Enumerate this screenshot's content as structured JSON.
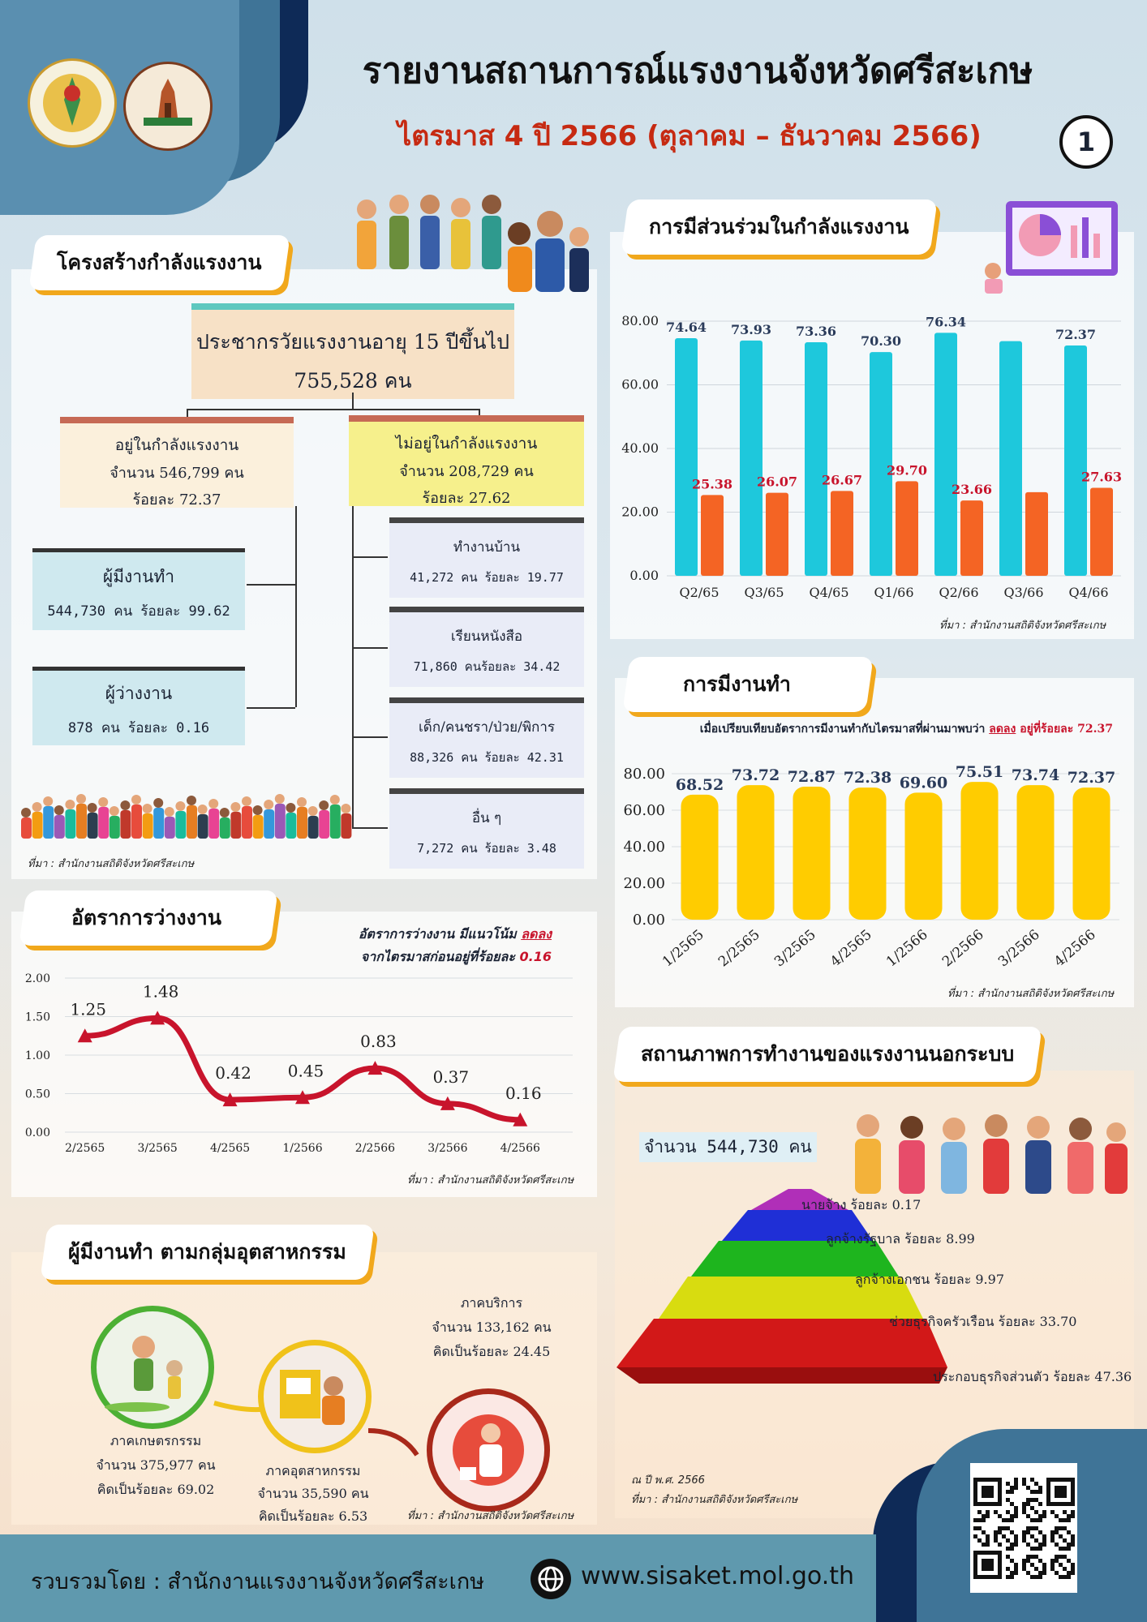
{
  "header": {
    "title": "รายงานสถานการณ์แรงงานจังหวัดศรีสะเกษ",
    "subtitle": "ไตรมาส 4 ปี 2566 (ตุลาคม – ธันวาคม 2566)",
    "page_number": "1"
  },
  "structure": {
    "tab": "โครงสร้างกำลังแรงงาน",
    "top": {
      "label": "ประชากรวัยแรงงานอายุ 15 ปีขึ้นไป",
      "value": "755,528 คน"
    },
    "in_labor": {
      "l1": "อยู่ในกำลังแรงงาน",
      "l2": "จำนวน 546,799 คน",
      "l3": "ร้อยละ 72.37"
    },
    "out_labor": {
      "l1": "ไม่อยู่ในกำลังแรงงาน",
      "l2": "จำนวน 208,729 คน",
      "l3": "ร้อยละ 27.62"
    },
    "employed": {
      "l1": "ผู้มีงานทำ",
      "l2": "544,730 คน ร้อยละ 99.62"
    },
    "unemployed": {
      "l1": "ผู้ว่างงาน",
      "l2": "878 คน ร้อยละ 0.16"
    },
    "out_items": [
      {
        "label": "ทำงานบ้าน",
        "value": "41,272 คน ร้อยละ 19.77"
      },
      {
        "label": "เรียนหนังสือ",
        "value": "71,860 คนร้อยละ 34.42"
      },
      {
        "label": "เด็ก/คนชรา/ป่วย/พิการ",
        "value": "88,326 คน ร้อยละ 42.31"
      },
      {
        "label": "อื่น ๆ",
        "value": "7,272 คน  ร้อยละ 3.48"
      }
    ],
    "source": "ที่มา : สำนักงานสถิติจังหวัดศรีสะเกษ"
  },
  "participation": {
    "tab": "การมีส่วนร่วมในกำลังแรงงาน",
    "source": "ที่มา : สำนักงานสถิติจังหวัดศรีสะเกษ"
  },
  "employment": {
    "tab": "การมีงานทำ",
    "note_prefix": "เมื่อเปรียบเทียบอัตราการมีงานทำกับไตรมาสที่ผ่านมาพบว่า ",
    "note_trend": "ลดลง",
    "note_mid": " อยู่ที่ร้อยละ ",
    "note_value": "72.37",
    "source": "ที่มา : สำนักงานสถิติจังหวัดศรีสะเกษ"
  },
  "unemployment": {
    "tab": "อัตราการว่างงาน",
    "note1_prefix": "อัตราการว่างงาน มีแนวโน้ม ",
    "note1_trend": "ลดลง",
    "note2_prefix": "จากไตรมาสก่อนอยู่ที่ร้อยละ ",
    "note2_value": "0.16",
    "source": "ที่มา : สำนักงานสถิติจังหวัดศรีสะเกษ"
  },
  "industry": {
    "tab": "ผู้มีงานทำ ตามกลุ่มอุตสาหกรรม",
    "agri": {
      "l1": "ภาคเกษตรกรรม",
      "l2": "จำนวน 375,977 คน",
      "l3": "คิดเป็นร้อยละ  69.02"
    },
    "manu": {
      "l1": "ภาคอุตสาหกรรม",
      "l2": "จำนวน   35,590 คน",
      "l3": "คิดเป็นร้อยละ   6.53"
    },
    "serv": {
      "l1": "ภาคบริการ",
      "l2": "จำนวน  133,162 คน",
      "l3": "คิดเป็นร้อยละ   24.45"
    },
    "source": "ที่มา : สำนักงานสถิติจังหวัดศรีสะเกษ"
  },
  "informal": {
    "tab": "สถานภาพการทำงานของแรงงานนอกระบบ",
    "count": "จำนวน 544,730 คน",
    "levels": [
      {
        "label": "นายจ้าง ร้อยละ 0.17",
        "color": "#b02fb8"
      },
      {
        "label": "ลูกจ้างรัฐบาล ร้อยละ 8.99",
        "color": "#1f2fd6"
      },
      {
        "label": "ลูกจ้างเอกชน ร้อยละ 9.97",
        "color": "#1eb51e"
      },
      {
        "label": "ช่วยธุรกิจครัวเรือน ร้อยละ 33.70",
        "color": "#d8dc10"
      },
      {
        "label": "ประกอบธุรกิจส่วนตัว ร้อยละ 47.36",
        "color": "#d21818"
      }
    ],
    "year": "ณ ปี พ.ศ. 2566",
    "source": "ที่มา : สำนักงานสถิติจังหวัดศรีสะเกษ"
  },
  "footer": {
    "compiled_by": "รวบรวมโดย  :  สำนักงานแรงงานจังหวัดศรีสะเกษ",
    "website": "www.sisaket.mol.go.th"
  },
  "chart_data": [
    {
      "type": "bar",
      "categories": [
        "Q2/65",
        "Q3/65",
        "Q4/65",
        "Q1/66",
        "Q2/66",
        "Q3/66",
        "Q4/66"
      ],
      "series": [
        {
          "values": [
            74.64,
            73.93,
            73.36,
            70.3,
            76.34,
            73.74,
            72.37
          ],
          "color": "#1ec8dc",
          "labels": [
            "74.64",
            "73.93",
            "73.36",
            "70.30",
            "76.34",
            "",
            "72.37"
          ]
        },
        {
          "values": [
            25.38,
            26.07,
            26.67,
            29.7,
            23.66,
            26.26,
            27.63
          ],
          "color": "#f46424",
          "labels": [
            "25.38",
            "26.07",
            "26.67",
            "29.70",
            "23.66",
            "",
            "27.63"
          ]
        }
      ],
      "yticks": [
        "0.00",
        "20.00",
        "40.00",
        "60.00",
        "80.00"
      ],
      "ylim": [
        0,
        80
      ],
      "grid": true
    },
    {
      "type": "bar",
      "categories": [
        "1/2565",
        "2/2565",
        "3/2565",
        "4/2565",
        "1/2566",
        "2/2566",
        "3/2566",
        "4/2566"
      ],
      "values": [
        68.52,
        73.72,
        72.87,
        72.38,
        69.6,
        75.51,
        73.74,
        72.37
      ],
      "labels": [
        "68.52",
        "73.72",
        "72.87",
        "72.38",
        "69.60",
        "75.51",
        "73.74",
        "72.37"
      ],
      "yticks": [
        "0.00",
        "20.00",
        "40.00",
        "60.00",
        "80.00"
      ],
      "ylim": [
        0,
        80
      ],
      "color": "#ffcc00",
      "grid": true
    },
    {
      "type": "line",
      "categories": [
        "2/2565",
        "3/2565",
        "4/2565",
        "1/2566",
        "2/2566",
        "3/2566",
        "4/2566"
      ],
      "values": [
        1.25,
        1.48,
        0.42,
        0.45,
        0.83,
        0.37,
        0.16
      ],
      "labels": [
        "1.25",
        "1.48",
        "0.42",
        "0.45",
        "0.83",
        "0.37",
        "0.16"
      ],
      "yticks": [
        "0.00",
        "0.50",
        "1.00",
        "1.50",
        "2.00"
      ],
      "ylim": [
        0,
        2
      ],
      "color": "#c8142c",
      "grid": true
    }
  ]
}
